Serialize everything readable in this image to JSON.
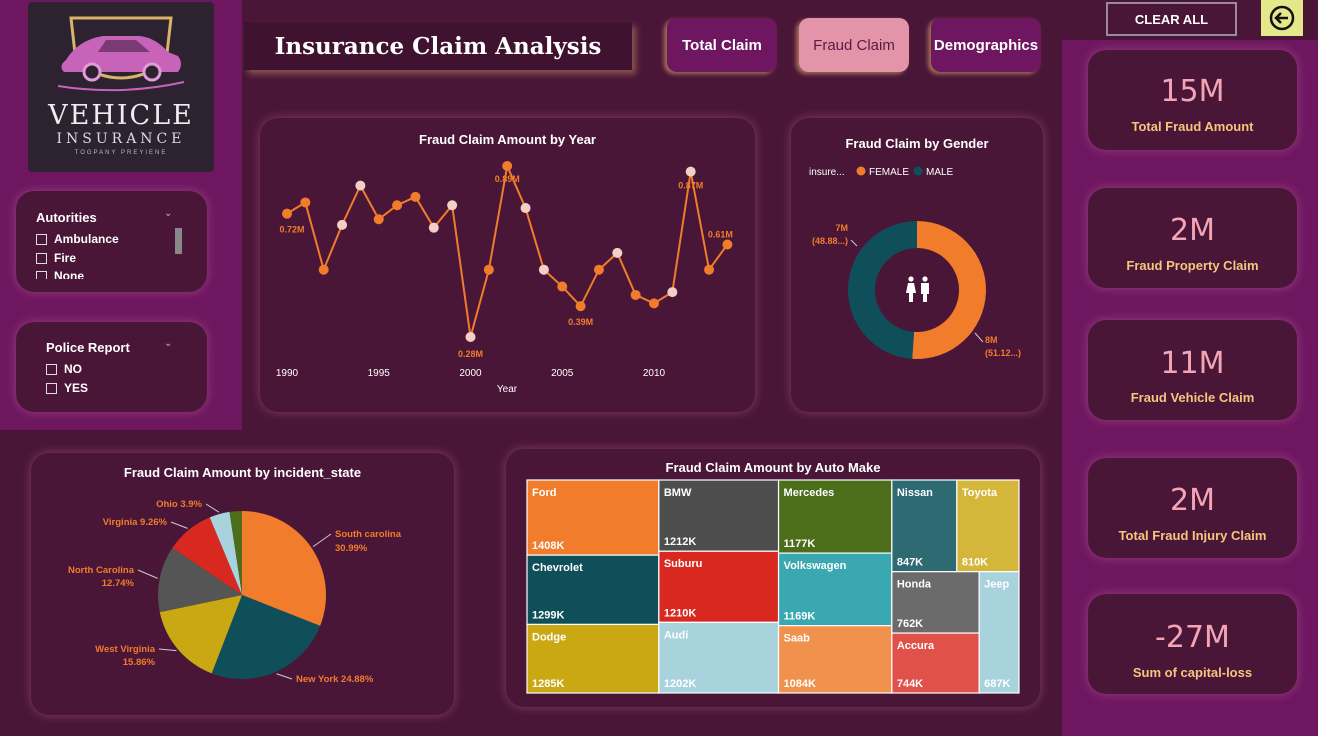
{
  "logo": {
    "line1": "VEHICLE",
    "line2": "INSURANCE",
    "line3": "TOGPANY PREYIENE"
  },
  "header": {
    "title": "Insurance Claim Analysis"
  },
  "nav": {
    "total_claim": "Total Claim",
    "fraud_claim": "Fraud Claim",
    "demographics": "Demographics"
  },
  "toolbar": {
    "clear_all": "CLEAR ALL"
  },
  "slicers": {
    "authorities": {
      "title": "Autorities",
      "items": [
        "Ambulance",
        "Fire",
        "None"
      ]
    },
    "police_report": {
      "title": "Police Report",
      "items": [
        "NO",
        "YES"
      ]
    }
  },
  "kpis": [
    {
      "value": "15M",
      "label": "Total Fraud Amount"
    },
    {
      "value": "2M",
      "label": "Fraud Property Claim"
    },
    {
      "value": "11M",
      "label": "Fraud Vehicle Claim"
    },
    {
      "value": "2M",
      "label": "Total Fraud Injury Claim"
    },
    {
      "value": "-27M",
      "label": "Sum of capital-loss"
    }
  ],
  "colors": {
    "orange": "#f07c2c",
    "teal": "#0f4f5a",
    "light_point": "#f3d0c6",
    "accent_pink": "#f4a4b4",
    "gold": "#f6c57e"
  },
  "chart_data": [
    {
      "type": "line",
      "title": "Fraud Claim Amount by Year",
      "xlabel": "Year",
      "ylabel": "",
      "x": [
        1990,
        1991,
        1992,
        1993,
        1994,
        1995,
        1996,
        1997,
        1998,
        1999,
        2000,
        2001,
        2002,
        2003,
        2004,
        2005,
        2006,
        2007,
        2008,
        2009,
        2010,
        2011,
        2012,
        2013,
        2014
      ],
      "values": [
        0.72,
        0.76,
        0.52,
        0.68,
        0.82,
        0.7,
        0.75,
        0.78,
        0.67,
        0.75,
        0.28,
        0.52,
        0.89,
        0.74,
        0.52,
        0.46,
        0.39,
        0.52,
        0.58,
        0.43,
        0.4,
        0.44,
        0.87,
        0.52,
        0.61
      ],
      "point_colors": [
        "orange",
        "orange",
        "orange",
        "light",
        "light",
        "orange",
        "orange",
        "orange",
        "light",
        "light",
        "light",
        "orange",
        "orange",
        "light",
        "light",
        "orange",
        "orange",
        "orange",
        "light",
        "orange",
        "orange",
        "light",
        "light",
        "orange",
        "orange"
      ],
      "data_labels": [
        {
          "x": 1990,
          "label": "0.72M"
        },
        {
          "x": 2000,
          "label": "0.28M"
        },
        {
          "x": 2002,
          "label": "0.89M"
        },
        {
          "x": 2006,
          "label": "0.39M"
        },
        {
          "x": 2012,
          "label": "0.87M"
        },
        {
          "x": 2014,
          "label": "0.61M"
        }
      ],
      "x_ticks": [
        "1990",
        "1995",
        "2000",
        "2005",
        "2010"
      ],
      "grid": false
    },
    {
      "type": "pie",
      "donut": true,
      "title": "Fraud Claim by Gender",
      "legend_title": "insure...",
      "legend_position": "top",
      "slices": [
        {
          "name": "FEMALE",
          "value": 51.12,
          "label_amount": "8M",
          "label_pct": "(51.12...)",
          "color": "#f07c2c"
        },
        {
          "name": "MALE",
          "value": 48.88,
          "label_amount": "7M",
          "label_pct": "(48.88...)",
          "color": "#0f4f5a"
        }
      ]
    },
    {
      "type": "pie",
      "title": "Fraud Claim Amount by incident_state",
      "slices": [
        {
          "name": "South carolina",
          "value": 30.99,
          "label": "South carolina",
          "label2": "30.99%",
          "color": "#f07c2c"
        },
        {
          "name": "New York",
          "value": 24.88,
          "label": "New York 24.88%",
          "label2": "",
          "color": "#0f4f5a"
        },
        {
          "name": "West Virginia",
          "value": 15.86,
          "label": "West Virginia",
          "label2": "15.86%",
          "color": "#c9a814"
        },
        {
          "name": "North Carolina",
          "value": 12.74,
          "label": "North Carolina",
          "label2": "12.74%",
          "color": "#555555"
        },
        {
          "name": "Virginia",
          "value": 9.26,
          "label": "Virginia 9.26%",
          "label2": "",
          "color": "#d8281f"
        },
        {
          "name": "Ohio",
          "value": 3.9,
          "label": "Ohio 3.9%",
          "label2": "",
          "color": "#a9d3dc"
        },
        {
          "name": "Other",
          "value": 2.37,
          "label": "",
          "label2": "",
          "color": "#4c6e1a"
        }
      ]
    },
    {
      "type": "treemap",
      "title": "Fraud Claim Amount by Auto Make",
      "items": [
        {
          "name": "Ford",
          "value": 1408,
          "label": "1408K",
          "color": "#f07c2c"
        },
        {
          "name": "BMW",
          "value": 1212,
          "label": "1212K",
          "color": "#4d4d4d"
        },
        {
          "name": "Mercedes",
          "value": 1177,
          "label": "1177K",
          "color": "#4c6e1a"
        },
        {
          "name": "Nissan",
          "value": 847,
          "label": "847K",
          "color": "#2e6a72"
        },
        {
          "name": "Toyota",
          "value": 810,
          "label": "810K",
          "color": "#d4b63b"
        },
        {
          "name": "Chevrolet",
          "value": 1299,
          "label": "1299K",
          "color": "#0f4f5a"
        },
        {
          "name": "Suburu",
          "value": 1210,
          "label": "1210K",
          "color": "#d8281f"
        },
        {
          "name": "Volkswagen",
          "value": 1169,
          "label": "1169K",
          "color": "#3aa8b0"
        },
        {
          "name": "Honda",
          "value": 762,
          "label": "762K",
          "color": "#6b6b6b"
        },
        {
          "name": "Jeep",
          "value": 687,
          "label": "687K",
          "color": "#a9d3dc"
        },
        {
          "name": "Dodge",
          "value": 1285,
          "label": "1285K",
          "color": "#c9a814"
        },
        {
          "name": "Audi",
          "value": 1202,
          "label": "1202K",
          "color": "#a9d3dc"
        },
        {
          "name": "Saab",
          "value": 1084,
          "label": "1084K",
          "color": "#f0924e"
        },
        {
          "name": "Accura",
          "value": 744,
          "label": "744K",
          "color": "#e0514a"
        }
      ]
    }
  ]
}
